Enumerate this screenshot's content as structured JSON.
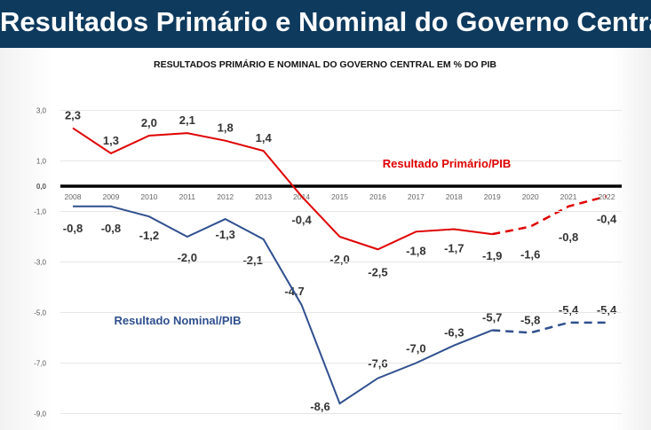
{
  "header": {
    "title": "Resultados Primário e Nominal do Governo Central"
  },
  "chart_data": {
    "type": "line",
    "title": "RESULTADOS PRIMÁRIO E NOMINAL DO GOVERNO CENTRAL EM % DO PIB",
    "categories": [
      "2008",
      "2009",
      "2010",
      "2011",
      "2012",
      "2013",
      "2014",
      "2015",
      "2016",
      "2017",
      "2018",
      "2019",
      "2020",
      "2021",
      "2022"
    ],
    "y_ticks": [
      "3,0",
      "1,0",
      "0,0",
      "-1,0",
      "-3,0",
      "-5,0",
      "-7,0",
      "-9,0"
    ],
    "ylim": [
      -9,
      3
    ],
    "grid": true,
    "series": [
      {
        "name": "Resultado Primário/PIB",
        "color": "#e00000",
        "values": [
          2.3,
          1.3,
          2.0,
          2.1,
          1.8,
          1.4,
          -0.4,
          -2.0,
          -2.5,
          -1.8,
          -1.7,
          -1.9,
          -1.6,
          -0.8,
          -0.4
        ],
        "labels": [
          "2,3",
          "1,3",
          "2,0",
          "2,1",
          "1,8",
          "1,4",
          "-0,4",
          "-2,0",
          "-2,5",
          "-1,8",
          "-1,7",
          "-1,9",
          "-1,6",
          "-0,8",
          "-0,4"
        ],
        "dashed_from": "2019"
      },
      {
        "name": "Resultado Nominal/PIB",
        "color": "#2f4f8f",
        "values": [
          -0.8,
          -0.8,
          -1.2,
          -2.0,
          -1.3,
          -2.1,
          -4.7,
          -8.6,
          -7.6,
          -7.0,
          -6.3,
          -5.7,
          -5.8,
          -5.4,
          -5.4
        ],
        "labels": [
          "-0,8",
          "-0,8",
          "-1,2",
          "-2,0",
          "-1,3",
          "-2,1",
          "-4,7",
          "-8,6",
          "-7,6",
          "-7,0",
          "-6,3",
          "-5,7",
          "-5,8",
          "-5,4",
          "-5,4"
        ],
        "dashed_from": "2019"
      }
    ]
  }
}
